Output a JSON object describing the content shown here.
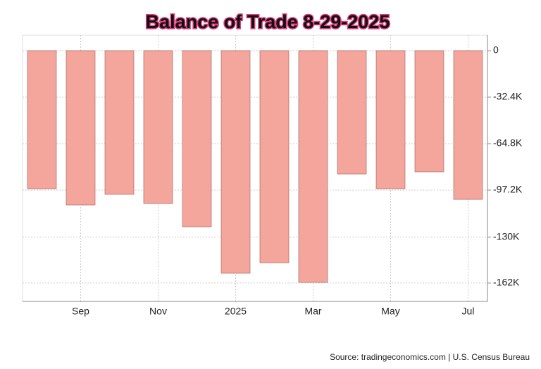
{
  "chart_data": {
    "type": "bar",
    "title": "Balance of Trade 8-29-2025",
    "categories": [
      null,
      "Sep",
      null,
      "Nov",
      null,
      "2025",
      null,
      "Mar",
      null,
      "May",
      null,
      "Jul"
    ],
    "values": [
      -96.2,
      -107.5,
      -100.1,
      -106.5,
      -122.7,
      -155.1,
      -147.8,
      -161.5,
      -85.9,
      -96.2,
      -84.4,
      -103.6
    ],
    "color": "#f4a69c",
    "ylim": [
      -174.8,
      10.8
    ],
    "yticks": [
      0,
      {
        "value": -32.4,
        "label": "-32.4K"
      },
      {
        "value": -64.8,
        "label": "-64.8K"
      },
      {
        "value": -97.2,
        "label": "-97.2K"
      },
      {
        "value": -130,
        "label": "-130K"
      },
      {
        "value": -162,
        "label": "-162K"
      }
    ],
    "grid": true
  },
  "source": "Source: tradingeconomics.com | U.S. Census Bureau"
}
